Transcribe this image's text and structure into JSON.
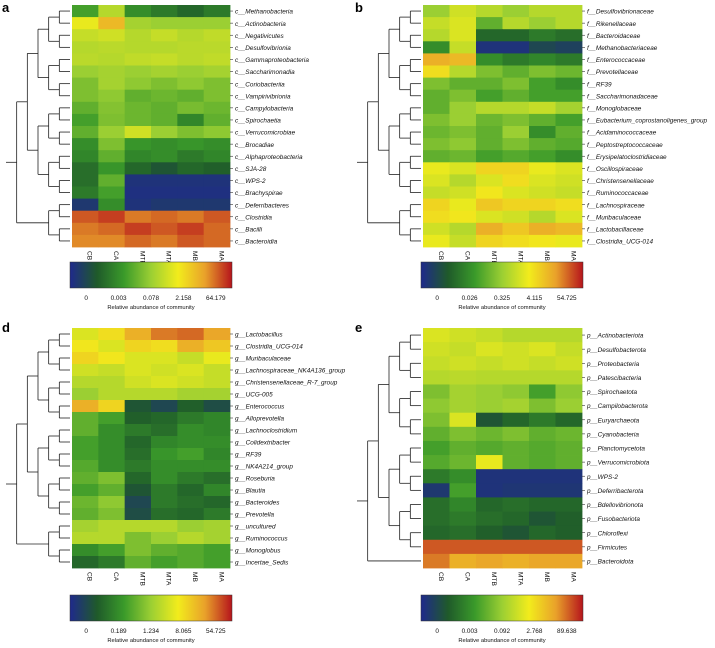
{
  "colorscale": {
    "stops": [
      "#1f2a8c",
      "#1f5a2a",
      "#3a9a2a",
      "#9bcf33",
      "#f2ec1c",
      "#e9a12a",
      "#b5141c"
    ]
  },
  "chart_data": [
    {
      "type": "heatmap",
      "panel_label": "a",
      "columns": [
        "CB",
        "CA",
        "MTB",
        "MTA",
        "MB",
        "MA"
      ],
      "rows": [
        "c__Methanobacteria",
        "c__Actinobacteria",
        "c__Negativicutes",
        "c__Desulfovibrionia",
        "c__Gammaproteobacteria",
        "c__Saccharimonadia",
        "c__Coriobacteriia",
        "c__Vampirivibrionia",
        "c__Campylobacteria",
        "c__Spirochaetia",
        "c__Verrucomicrobiae",
        "c__Brocadiae",
        "c__Alphaproteobacteria",
        "c__SJA-28",
        "c__WPS-2",
        "c__Brachyspirae",
        "c__Deferribacteres",
        "c__Clostridia",
        "c__Bacilli",
        "c__Bacteroidia"
      ],
      "values": [
        [
          0.35,
          0.55,
          0.3,
          0.25,
          0.2,
          0.25
        ],
        [
          0.65,
          0.78,
          0.52,
          0.5,
          0.5,
          0.5
        ],
        [
          0.58,
          0.6,
          0.55,
          0.58,
          0.55,
          0.57
        ],
        [
          0.55,
          0.56,
          0.55,
          0.55,
          0.56,
          0.56
        ],
        [
          0.56,
          0.55,
          0.57,
          0.58,
          0.56,
          0.57
        ],
        [
          0.5,
          0.52,
          0.5,
          0.52,
          0.5,
          0.52
        ],
        [
          0.45,
          0.52,
          0.48,
          0.45,
          0.48,
          0.45
        ],
        [
          0.45,
          0.48,
          0.4,
          0.42,
          0.4,
          0.45
        ],
        [
          0.4,
          0.46,
          0.42,
          0.4,
          0.44,
          0.42
        ],
        [
          0.35,
          0.45,
          0.42,
          0.4,
          0.28,
          0.4
        ],
        [
          0.4,
          0.5,
          0.6,
          0.5,
          0.45,
          0.48
        ],
        [
          0.3,
          0.45,
          0.32,
          0.3,
          0.32,
          0.3
        ],
        [
          0.28,
          0.4,
          0.28,
          0.3,
          0.25,
          0.28
        ],
        [
          0.22,
          0.32,
          0.2,
          0.15,
          0.2,
          0.18
        ],
        [
          0.22,
          0.4,
          0.03,
          0.03,
          0.03,
          0.03
        ],
        [
          0.25,
          0.35,
          0.02,
          0.02,
          0.02,
          0.02
        ],
        [
          0.05,
          0.3,
          0.03,
          0.05,
          0.05,
          0.05
        ],
        [
          0.92,
          0.95,
          0.88,
          0.9,
          0.88,
          0.92
        ],
        [
          0.88,
          0.9,
          0.95,
          0.92,
          0.95,
          0.9
        ],
        [
          0.86,
          0.86,
          0.9,
          0.88,
          0.92,
          0.9
        ]
      ],
      "scale_ticks": [
        "0",
        "0.003",
        "0.078",
        "2.158",
        "64.179"
      ],
      "scale_label": "Relative abundance of community"
    },
    {
      "type": "heatmap",
      "panel_label": "b",
      "columns": [
        "CB",
        "CA",
        "MTB",
        "MTA",
        "MB",
        "MA"
      ],
      "rows": [
        "f__Desulfovibrionaceae",
        "f__Rikenellaceae",
        "f__Bacteroidaceae",
        "f__Methanobacteriaceae",
        "f__Enterococcaceae",
        "f__Prevotellaceae",
        "f__RF39",
        "f__Saccharimonadaceae",
        "f__Monoglobaceae",
        "f__Eubacterium_coprostanoligenes_group",
        "f__Acidaminococcaceae",
        "f__Peptostreptococcaceae",
        "f__Erysipelatoclostridiaceae",
        "f__Oscillospiraceae",
        "f__Christensenellaceae",
        "f__Ruminococcaceae",
        "f__Lachnospiraceae",
        "f__Muribaculaceae",
        "f__Lactobacillaceae",
        "f__Clostridia_UCG-014"
      ],
      "values": [
        [
          0.5,
          0.6,
          0.55,
          0.5,
          0.55,
          0.55
        ],
        [
          0.58,
          0.62,
          0.4,
          0.55,
          0.5,
          0.55
        ],
        [
          0.55,
          0.62,
          0.2,
          0.2,
          0.25,
          0.22
        ],
        [
          0.3,
          0.58,
          0.03,
          0.03,
          0.1,
          0.08
        ],
        [
          0.8,
          0.78,
          0.3,
          0.25,
          0.28,
          0.25
        ],
        [
          0.7,
          0.55,
          0.45,
          0.4,
          0.45,
          0.42
        ],
        [
          0.45,
          0.4,
          0.4,
          0.45,
          0.35,
          0.3
        ],
        [
          0.4,
          0.45,
          0.35,
          0.4,
          0.35,
          0.35
        ],
        [
          0.4,
          0.5,
          0.55,
          0.55,
          0.58,
          0.52
        ],
        [
          0.45,
          0.5,
          0.42,
          0.45,
          0.4,
          0.35
        ],
        [
          0.42,
          0.45,
          0.4,
          0.5,
          0.3,
          0.4
        ],
        [
          0.45,
          0.48,
          0.4,
          0.45,
          0.4,
          0.38
        ],
        [
          0.4,
          0.42,
          0.35,
          0.38,
          0.35,
          0.3
        ],
        [
          0.65,
          0.62,
          0.72,
          0.72,
          0.65,
          0.62
        ],
        [
          0.62,
          0.55,
          0.62,
          0.7,
          0.62,
          0.6
        ],
        [
          0.58,
          0.6,
          0.68,
          0.62,
          0.6,
          0.58
        ],
        [
          0.72,
          0.65,
          0.75,
          0.72,
          0.72,
          0.7
        ],
        [
          0.7,
          0.68,
          0.62,
          0.6,
          0.55,
          0.62
        ],
        [
          0.6,
          0.55,
          0.8,
          0.75,
          0.8,
          0.78
        ],
        [
          0.65,
          0.58,
          0.72,
          0.7,
          0.68,
          0.65
        ]
      ],
      "scale_ticks": [
        "0",
        "0.026",
        "0.325",
        "4.115",
        "54.725"
      ],
      "scale_label": "Relative abundance of community"
    },
    {
      "type": "heatmap",
      "panel_label": "d",
      "columns": [
        "CB",
        "CA",
        "MTB",
        "MTA",
        "MB",
        "MA"
      ],
      "rows": [
        "g__Lactobacillus",
        "g__Clostridia_UCG-014",
        "g__Muribaculaceae",
        "g__Lachnospiraceae_NK4A136_group",
        "g__Christensenellaceae_R-7_group",
        "g__UCG-005",
        "g__Enterococcus",
        "g__Alloprevotella",
        "g__Lachnoclostridium",
        "g__Colidextribacter",
        "g__RF39",
        "g__NK4A214_group",
        "g__Roseburia",
        "g__Blautia",
        "g__Bacteroides",
        "g__Prevotella",
        "g__uncultured",
        "g__Ruminococcus",
        "g__Monoglobus",
        "g__Incertae_Sedis"
      ],
      "values": [
        [
          0.62,
          0.7,
          0.8,
          0.88,
          0.9,
          0.82
        ],
        [
          0.68,
          0.62,
          0.72,
          0.7,
          0.8,
          0.75
        ],
        [
          0.72,
          0.68,
          0.62,
          0.62,
          0.58,
          0.65
        ],
        [
          0.6,
          0.58,
          0.62,
          0.6,
          0.62,
          0.58
        ],
        [
          0.55,
          0.55,
          0.6,
          0.62,
          0.6,
          0.58
        ],
        [
          0.5,
          0.55,
          0.55,
          0.55,
          0.52,
          0.52
        ],
        [
          0.8,
          0.72,
          0.15,
          0.1,
          0.18,
          0.12
        ],
        [
          0.4,
          0.35,
          0.18,
          0.2,
          0.25,
          0.28
        ],
        [
          0.4,
          0.3,
          0.25,
          0.22,
          0.3,
          0.28
        ],
        [
          0.35,
          0.3,
          0.2,
          0.28,
          0.3,
          0.3
        ],
        [
          0.35,
          0.3,
          0.22,
          0.32,
          0.35,
          0.28
        ],
        [
          0.38,
          0.3,
          0.25,
          0.3,
          0.3,
          0.3
        ],
        [
          0.4,
          0.45,
          0.2,
          0.3,
          0.25,
          0.22
        ],
        [
          0.35,
          0.4,
          0.15,
          0.25,
          0.2,
          0.28
        ],
        [
          0.42,
          0.48,
          0.1,
          0.25,
          0.22,
          0.2
        ],
        [
          0.4,
          0.45,
          0.12,
          0.22,
          0.2,
          0.25
        ],
        [
          0.52,
          0.55,
          0.55,
          0.55,
          0.5,
          0.52
        ],
        [
          0.55,
          0.55,
          0.45,
          0.5,
          0.55,
          0.52
        ],
        [
          0.3,
          0.35,
          0.45,
          0.4,
          0.38,
          0.35
        ],
        [
          0.2,
          0.25,
          0.4,
          0.35,
          0.38,
          0.35
        ]
      ],
      "scale_ticks": [
        "0",
        "0.189",
        "1.234",
        "8.065",
        "54.725"
      ],
      "scale_label": "Relative abundance of community"
    },
    {
      "type": "heatmap",
      "panel_label": "e",
      "columns": [
        "CB",
        "CA",
        "MTB",
        "MTA",
        "MB",
        "MA"
      ],
      "rows": [
        "p__Actinobacteriota",
        "p__Desulfobacterota",
        "p__Proteobacteria",
        "p__Patescibacteria",
        "p__Spirochaetota",
        "p__Campilobacterota",
        "p__Euryarchaeota",
        "p__Cyanobacteria",
        "p__Planctomycetota",
        "p__Verrucomicrobiota",
        "p__WPS-2",
        "p__Deferribacterota",
        "p__Bdellovibrionota",
        "p__Fusobacteriota",
        "p__Chloroflexi",
        "p__Firmicutes",
        "p__Bacteroidota"
      ],
      "values": [
        [
          0.62,
          0.6,
          0.58,
          0.55,
          0.55,
          0.55
        ],
        [
          0.6,
          0.58,
          0.62,
          0.6,
          0.62,
          0.58
        ],
        [
          0.58,
          0.6,
          0.58,
          0.6,
          0.58,
          0.6
        ],
        [
          0.55,
          0.56,
          0.55,
          0.55,
          0.55,
          0.55
        ],
        [
          0.45,
          0.52,
          0.5,
          0.48,
          0.35,
          0.48
        ],
        [
          0.48,
          0.52,
          0.5,
          0.52,
          0.45,
          0.5
        ],
        [
          0.45,
          0.62,
          0.15,
          0.2,
          0.25,
          0.2
        ],
        [
          0.4,
          0.45,
          0.42,
          0.45,
          0.4,
          0.42
        ],
        [
          0.35,
          0.4,
          0.38,
          0.4,
          0.38,
          0.4
        ],
        [
          0.38,
          0.42,
          0.65,
          0.4,
          0.38,
          0.4
        ],
        [
          0.25,
          0.3,
          0.03,
          0.03,
          0.03,
          0.03
        ],
        [
          0.05,
          0.35,
          0.03,
          0.04,
          0.04,
          0.04
        ],
        [
          0.22,
          0.28,
          0.2,
          0.22,
          0.2,
          0.2
        ],
        [
          0.22,
          0.25,
          0.22,
          0.2,
          0.15,
          0.18
        ],
        [
          0.2,
          0.22,
          0.18,
          0.15,
          0.2,
          0.18
        ],
        [
          0.92,
          0.92,
          0.92,
          0.92,
          0.92,
          0.92
        ],
        [
          0.88,
          0.8,
          0.82,
          0.8,
          0.82,
          0.82
        ]
      ],
      "scale_ticks": [
        "0",
        "0.003",
        "0.092",
        "2.768",
        "89.638"
      ],
      "scale_label": "Relative abundance of community"
    }
  ]
}
